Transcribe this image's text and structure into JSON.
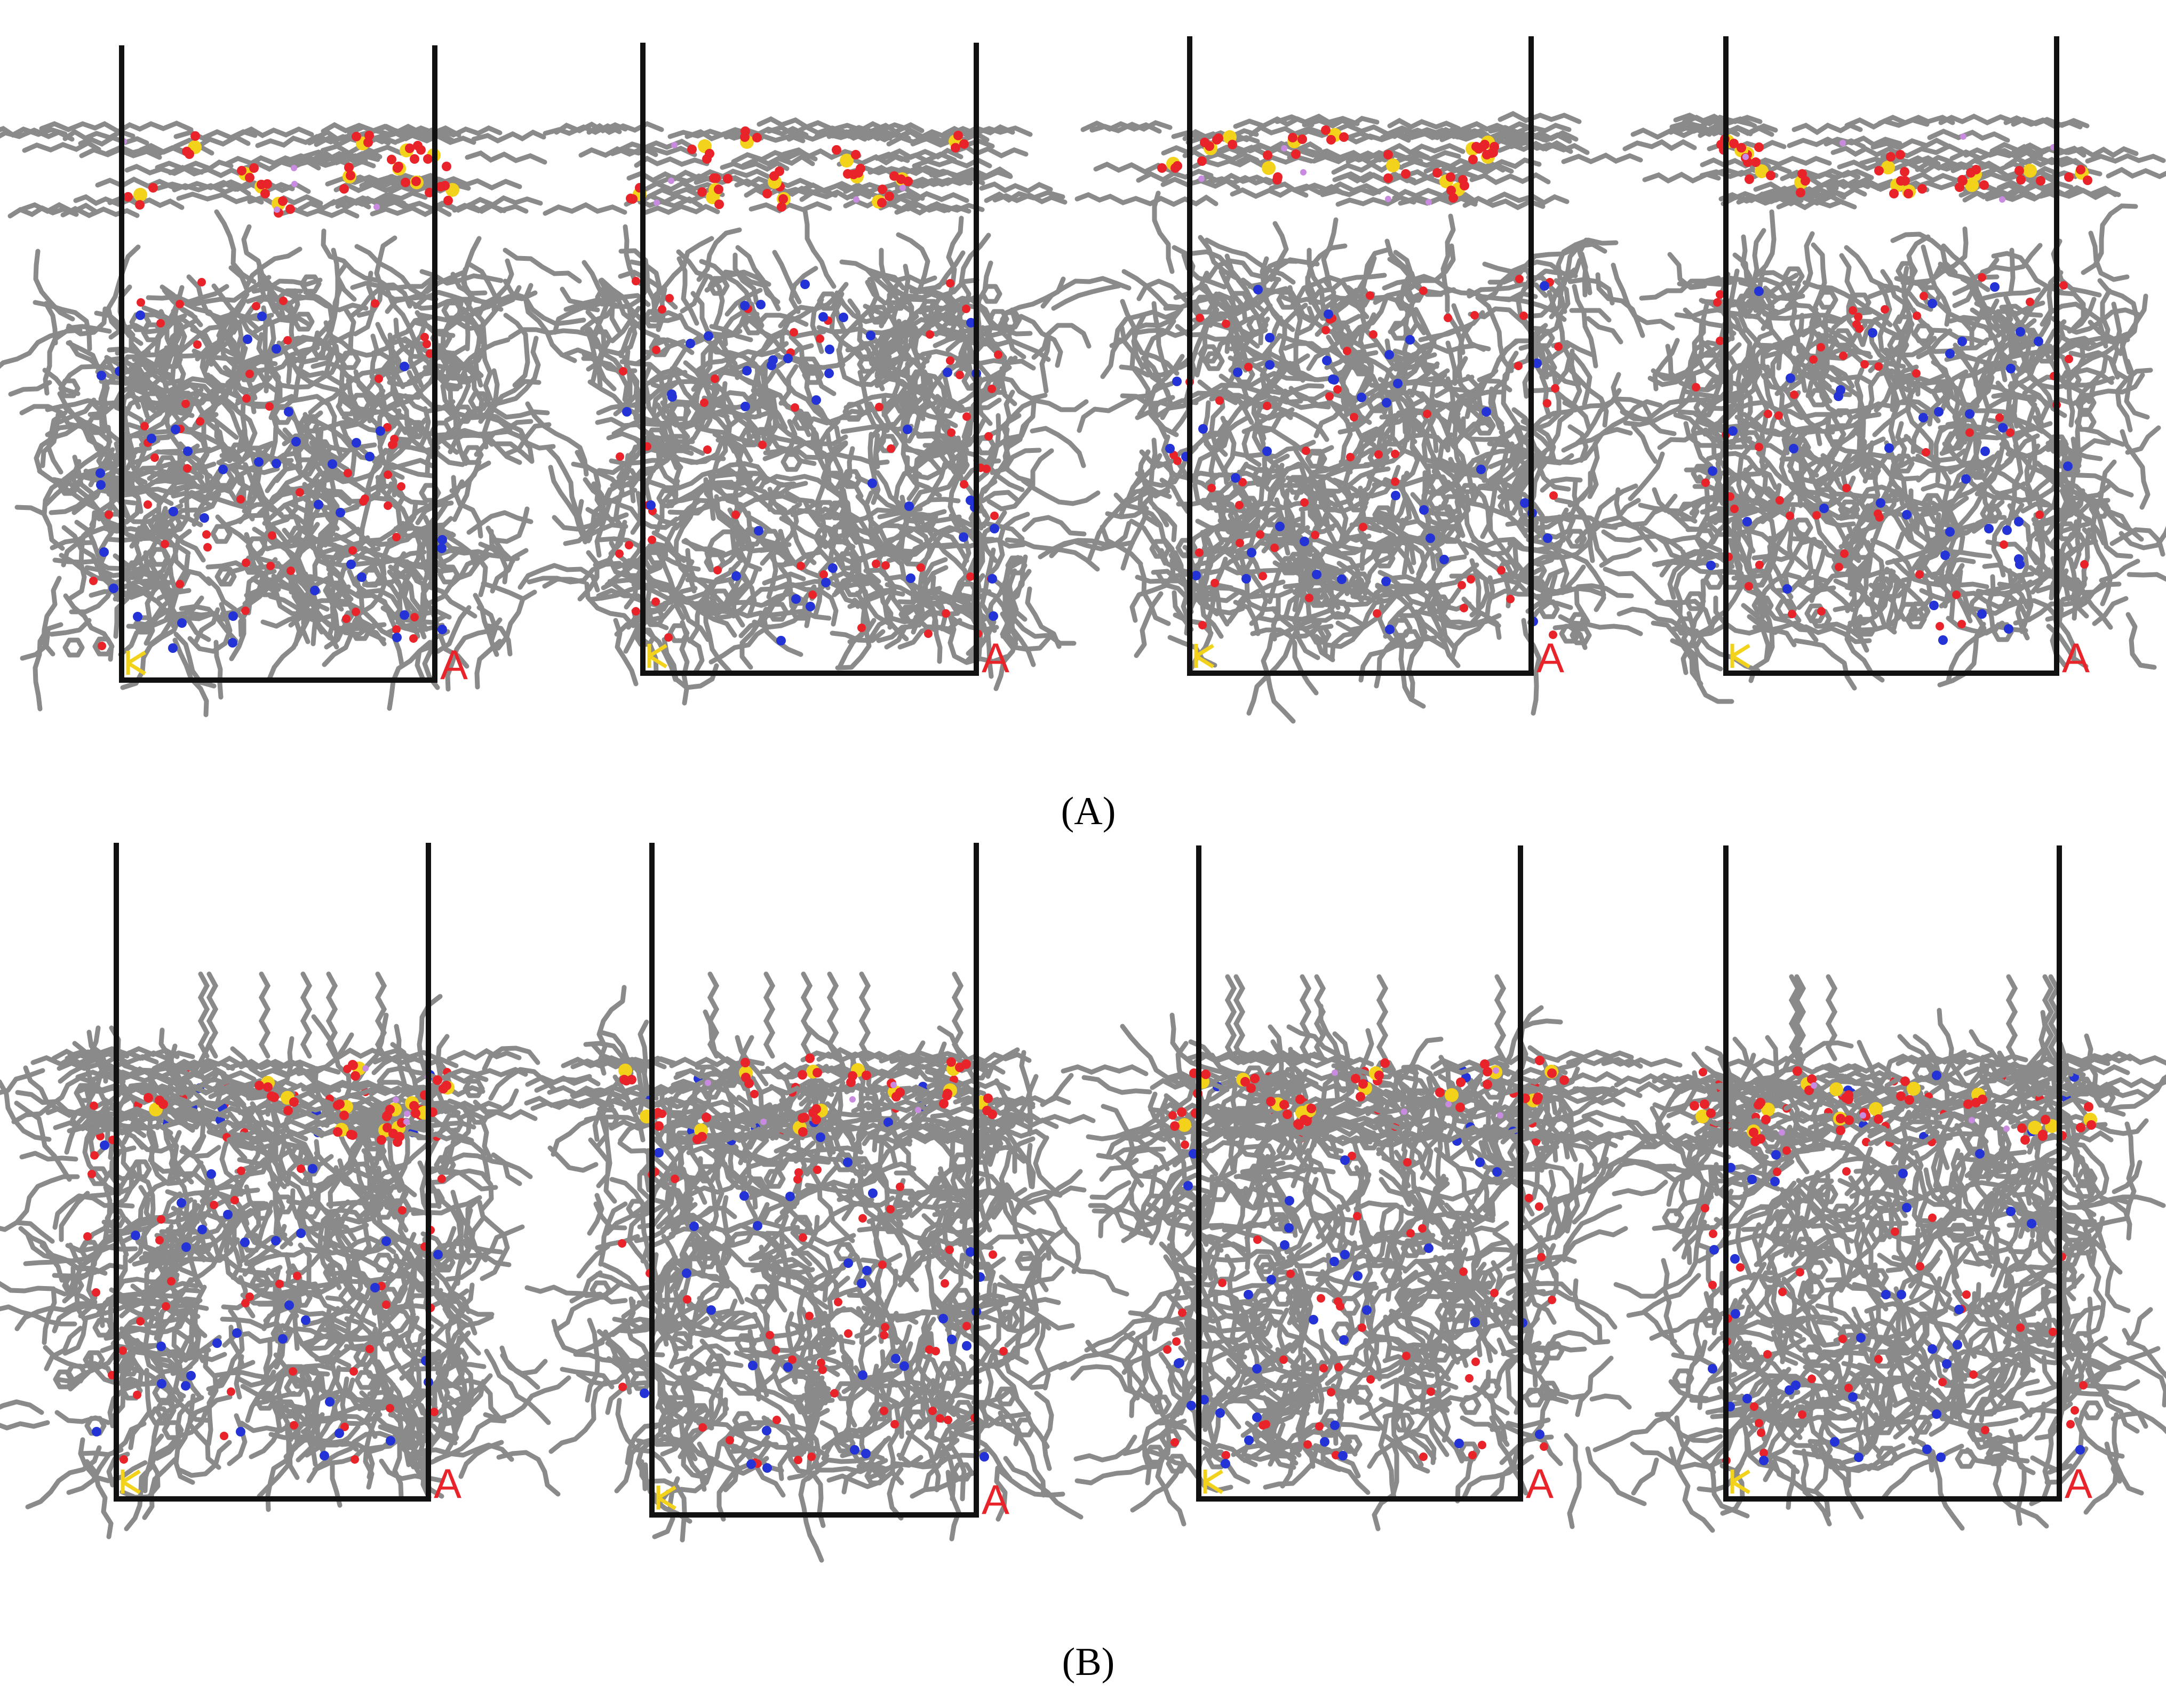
{
  "figure": {
    "colors": {
      "background": "#ffffff",
      "cell_frame": "#111111",
      "carbon": "#8a8a8a",
      "oxygen": "#e8242a",
      "nitrogen": "#2433d6",
      "sulfur": "#f2d21b",
      "hydrogen": "#c98be0",
      "axis_b": "#f2d21b",
      "axis_a": "#e8242a"
    },
    "rows": [
      {
        "caption": "(A)",
        "panels": [
          {
            "axis_a": "A",
            "surfactant": "adsorbed-layer-detached"
          },
          {
            "axis_a": "A",
            "surfactant": "adsorbed-layer-detached"
          },
          {
            "axis_a": "A",
            "surfactant": "adsorbed-layer-detached"
          },
          {
            "axis_a": "A",
            "surfactant": "adsorbed-layer-detached"
          }
        ]
      },
      {
        "caption": "(B)",
        "panels": [
          {
            "axis_a": "A",
            "surfactant": "adsorbed-on-surface"
          },
          {
            "axis_a": "A",
            "surfactant": "adsorbed-on-surface"
          },
          {
            "axis_a": "A",
            "surfactant": "adsorbed-on-surface"
          },
          {
            "axis_a": "A",
            "surfactant": "adsorbed-on-surface"
          }
        ]
      }
    ]
  }
}
